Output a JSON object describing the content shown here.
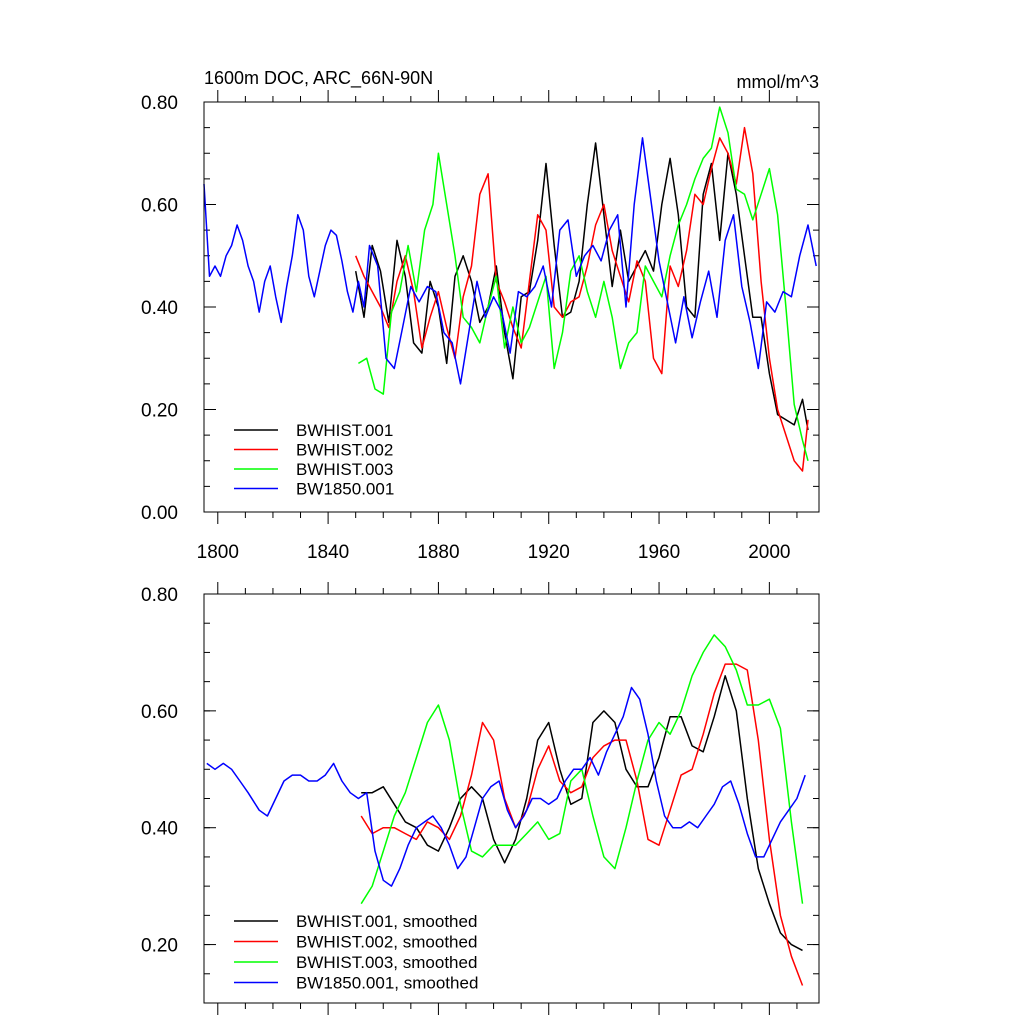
{
  "chart_data": [
    {
      "type": "line",
      "title": "1600m DOC, ARC_66N-90N",
      "units": "mmol/m^3",
      "xlim": [
        1795,
        2018
      ],
      "ylim": [
        0.0,
        0.8
      ],
      "x_ticks": [
        1800,
        1840,
        1880,
        1920,
        1960,
        2000
      ],
      "y_ticks": [
        0.0,
        0.2,
        0.4,
        0.6,
        0.8
      ],
      "y_tick_labels": [
        "0.00",
        "0.20",
        "0.40",
        "0.60",
        "0.80"
      ],
      "legend_position": "bottom-left",
      "series": [
        {
          "name": "BWHIST.001",
          "color": "#000000",
          "x": [
            1850,
            1853,
            1856,
            1859,
            1862,
            1865,
            1868,
            1871,
            1874,
            1877,
            1880,
            1883,
            1886,
            1889,
            1892,
            1895,
            1898,
            1901,
            1904,
            1907,
            1910,
            1913,
            1916,
            1919,
            1922,
            1925,
            1928,
            1931,
            1934,
            1937,
            1940,
            1943,
            1946,
            1949,
            1952,
            1955,
            1958,
            1961,
            1964,
            1967,
            1970,
            1973,
            1976,
            1979,
            1982,
            1985,
            1988,
            1991,
            1994,
            1997,
            2000,
            2003,
            2006,
            2009,
            2012,
            2014
          ],
          "y": [
            0.47,
            0.38,
            0.52,
            0.47,
            0.37,
            0.53,
            0.46,
            0.33,
            0.31,
            0.45,
            0.4,
            0.29,
            0.46,
            0.5,
            0.45,
            0.37,
            0.4,
            0.48,
            0.35,
            0.26,
            0.42,
            0.43,
            0.53,
            0.68,
            0.52,
            0.38,
            0.39,
            0.45,
            0.6,
            0.72,
            0.58,
            0.44,
            0.55,
            0.45,
            0.48,
            0.51,
            0.47,
            0.6,
            0.69,
            0.58,
            0.4,
            0.38,
            0.62,
            0.68,
            0.53,
            0.7,
            0.62,
            0.5,
            0.38,
            0.38,
            0.27,
            0.19,
            0.18,
            0.17,
            0.22,
            0.16
          ]
        },
        {
          "name": "BWHIST.002",
          "color": "#ff0000",
          "x": [
            1850,
            1853,
            1856,
            1859,
            1862,
            1865,
            1868,
            1871,
            1874,
            1877,
            1880,
            1883,
            1886,
            1889,
            1892,
            1895,
            1898,
            1901,
            1904,
            1907,
            1910,
            1913,
            1916,
            1919,
            1922,
            1925,
            1928,
            1931,
            1934,
            1937,
            1940,
            1943,
            1946,
            1949,
            1952,
            1955,
            1958,
            1961,
            1964,
            1967,
            1970,
            1973,
            1976,
            1979,
            1982,
            1985,
            1988,
            1991,
            1994,
            1997,
            2000,
            2003,
            2006,
            2009,
            2012,
            2014
          ],
          "y": [
            0.5,
            0.46,
            0.43,
            0.4,
            0.36,
            0.45,
            0.5,
            0.43,
            0.32,
            0.38,
            0.43,
            0.36,
            0.3,
            0.42,
            0.48,
            0.62,
            0.66,
            0.45,
            0.41,
            0.36,
            0.32,
            0.45,
            0.58,
            0.55,
            0.4,
            0.38,
            0.41,
            0.42,
            0.48,
            0.56,
            0.6,
            0.51,
            0.46,
            0.41,
            0.49,
            0.45,
            0.3,
            0.27,
            0.48,
            0.44,
            0.51,
            0.62,
            0.6,
            0.67,
            0.73,
            0.7,
            0.64,
            0.75,
            0.66,
            0.45,
            0.3,
            0.2,
            0.15,
            0.1,
            0.08,
            0.18
          ]
        },
        {
          "name": "BWHIST.003",
          "color": "#00ff00",
          "x": [
            1851,
            1854,
            1857,
            1860,
            1863,
            1866,
            1869,
            1872,
            1875,
            1878,
            1880,
            1883,
            1886,
            1889,
            1892,
            1895,
            1898,
            1901,
            1904,
            1907,
            1910,
            1913,
            1916,
            1919,
            1922,
            1925,
            1928,
            1931,
            1934,
            1937,
            1940,
            1943,
            1946,
            1949,
            1952,
            1955,
            1958,
            1961,
            1964,
            1967,
            1970,
            1973,
            1976,
            1979,
            1982,
            1985,
            1988,
            1991,
            1994,
            1997,
            2000,
            2003,
            2006,
            2009,
            2012,
            2014
          ],
          "y": [
            0.29,
            0.3,
            0.24,
            0.23,
            0.39,
            0.43,
            0.52,
            0.43,
            0.55,
            0.6,
            0.7,
            0.6,
            0.5,
            0.38,
            0.36,
            0.33,
            0.4,
            0.46,
            0.32,
            0.4,
            0.33,
            0.36,
            0.41,
            0.46,
            0.28,
            0.35,
            0.47,
            0.5,
            0.43,
            0.38,
            0.45,
            0.38,
            0.28,
            0.33,
            0.35,
            0.48,
            0.45,
            0.42,
            0.5,
            0.56,
            0.6,
            0.65,
            0.69,
            0.71,
            0.79,
            0.74,
            0.63,
            0.62,
            0.57,
            0.62,
            0.67,
            0.58,
            0.4,
            0.21,
            0.14,
            0.1
          ]
        },
        {
          "name": "BW1850.001",
          "color": "#0000ff",
          "x": [
            1795,
            1797,
            1799,
            1801,
            1803,
            1805,
            1807,
            1809,
            1811,
            1813,
            1815,
            1817,
            1819,
            1821,
            1823,
            1825,
            1827,
            1829,
            1831,
            1833,
            1835,
            1837,
            1839,
            1841,
            1843,
            1845,
            1847,
            1849,
            1851,
            1853,
            1855,
            1858,
            1861,
            1864,
            1867,
            1870,
            1873,
            1876,
            1879,
            1882,
            1885,
            1888,
            1891,
            1894,
            1897,
            1900,
            1903,
            1906,
            1909,
            1912,
            1915,
            1918,
            1921,
            1924,
            1927,
            1930,
            1933,
            1936,
            1939,
            1942,
            1945,
            1948,
            1951,
            1954,
            1957,
            1960,
            1963,
            1966,
            1969,
            1972,
            1975,
            1978,
            1981,
            1984,
            1987,
            1990,
            1993,
            1996,
            1999,
            2002,
            2005,
            2008,
            2011,
            2014,
            2017
          ],
          "y": [
            0.64,
            0.46,
            0.48,
            0.46,
            0.5,
            0.52,
            0.56,
            0.53,
            0.48,
            0.45,
            0.39,
            0.45,
            0.48,
            0.42,
            0.37,
            0.44,
            0.5,
            0.58,
            0.55,
            0.46,
            0.42,
            0.47,
            0.52,
            0.55,
            0.54,
            0.49,
            0.43,
            0.39,
            0.45,
            0.4,
            0.52,
            0.48,
            0.3,
            0.28,
            0.36,
            0.44,
            0.41,
            0.44,
            0.43,
            0.35,
            0.33,
            0.25,
            0.35,
            0.45,
            0.38,
            0.42,
            0.39,
            0.31,
            0.43,
            0.42,
            0.44,
            0.48,
            0.4,
            0.55,
            0.57,
            0.46,
            0.5,
            0.52,
            0.49,
            0.55,
            0.58,
            0.4,
            0.6,
            0.73,
            0.61,
            0.49,
            0.41,
            0.33,
            0.42,
            0.34,
            0.41,
            0.47,
            0.38,
            0.53,
            0.58,
            0.44,
            0.37,
            0.28,
            0.41,
            0.39,
            0.43,
            0.42,
            0.5,
            0.56,
            0.48
          ]
        }
      ]
    },
    {
      "type": "line",
      "title": "",
      "xlim": [
        1795,
        2018
      ],
      "ylim": [
        0.1,
        0.8
      ],
      "x_ticks": [
        1800,
        1840,
        1880,
        1920,
        1960,
        2000
      ],
      "y_ticks": [
        0.2,
        0.4,
        0.6,
        0.8
      ],
      "y_tick_labels": [
        "0.20",
        "0.40",
        "0.60",
        "0.80"
      ],
      "legend_position": "bottom-left",
      "series": [
        {
          "name": "BWHIST.001, smoothed",
          "color": "#000000",
          "x": [
            1852,
            1856,
            1860,
            1864,
            1868,
            1872,
            1876,
            1880,
            1884,
            1888,
            1892,
            1896,
            1900,
            1904,
            1908,
            1912,
            1916,
            1920,
            1924,
            1928,
            1932,
            1936,
            1940,
            1944,
            1948,
            1952,
            1956,
            1960,
            1964,
            1968,
            1972,
            1976,
            1980,
            1984,
            1988,
            1992,
            1996,
            2000,
            2004,
            2008,
            2012
          ],
          "y": [
            0.46,
            0.46,
            0.47,
            0.44,
            0.41,
            0.4,
            0.37,
            0.36,
            0.4,
            0.45,
            0.47,
            0.45,
            0.38,
            0.34,
            0.38,
            0.45,
            0.55,
            0.58,
            0.5,
            0.44,
            0.45,
            0.58,
            0.6,
            0.58,
            0.5,
            0.47,
            0.47,
            0.52,
            0.59,
            0.59,
            0.54,
            0.53,
            0.59,
            0.66,
            0.6,
            0.45,
            0.33,
            0.27,
            0.22,
            0.2,
            0.19
          ]
        },
        {
          "name": "BWHIST.002, smoothed",
          "color": "#ff0000",
          "x": [
            1852,
            1856,
            1860,
            1864,
            1868,
            1872,
            1876,
            1880,
            1884,
            1888,
            1892,
            1896,
            1900,
            1904,
            1908,
            1912,
            1916,
            1920,
            1924,
            1928,
            1932,
            1936,
            1940,
            1944,
            1948,
            1952,
            1956,
            1960,
            1964,
            1968,
            1972,
            1976,
            1980,
            1984,
            1988,
            1992,
            1996,
            2000,
            2004,
            2008,
            2012
          ],
          "y": [
            0.42,
            0.39,
            0.4,
            0.4,
            0.39,
            0.38,
            0.41,
            0.4,
            0.38,
            0.42,
            0.49,
            0.58,
            0.55,
            0.45,
            0.4,
            0.43,
            0.5,
            0.54,
            0.48,
            0.46,
            0.47,
            0.52,
            0.54,
            0.55,
            0.55,
            0.48,
            0.38,
            0.37,
            0.43,
            0.49,
            0.5,
            0.56,
            0.63,
            0.68,
            0.68,
            0.67,
            0.55,
            0.38,
            0.25,
            0.18,
            0.13
          ]
        },
        {
          "name": "BWHIST.003, smoothed",
          "color": "#00ff00",
          "x": [
            1852,
            1856,
            1860,
            1864,
            1868,
            1872,
            1876,
            1880,
            1884,
            1888,
            1892,
            1896,
            1900,
            1904,
            1908,
            1912,
            1916,
            1920,
            1924,
            1928,
            1932,
            1936,
            1940,
            1944,
            1948,
            1952,
            1956,
            1960,
            1964,
            1968,
            1972,
            1976,
            1980,
            1984,
            1988,
            1992,
            1996,
            2000,
            2004,
            2008,
            2012
          ],
          "y": [
            0.27,
            0.3,
            0.36,
            0.42,
            0.46,
            0.52,
            0.58,
            0.61,
            0.55,
            0.44,
            0.36,
            0.35,
            0.37,
            0.37,
            0.37,
            0.39,
            0.41,
            0.38,
            0.39,
            0.48,
            0.5,
            0.42,
            0.35,
            0.33,
            0.4,
            0.48,
            0.55,
            0.58,
            0.56,
            0.6,
            0.66,
            0.7,
            0.73,
            0.71,
            0.67,
            0.61,
            0.61,
            0.62,
            0.57,
            0.41,
            0.27
          ]
        },
        {
          "name": "BW1850.001, smoothed",
          "color": "#0000ff",
          "x": [
            1796,
            1799,
            1802,
            1805,
            1808,
            1811,
            1815,
            1818,
            1821,
            1824,
            1827,
            1830,
            1833,
            1836,
            1839,
            1842,
            1845,
            1848,
            1851,
            1854,
            1857,
            1860,
            1863,
            1866,
            1869,
            1872,
            1875,
            1878,
            1881,
            1884,
            1887,
            1890,
            1893,
            1896,
            1899,
            1902,
            1905,
            1908,
            1911,
            1914,
            1917,
            1920,
            1923,
            1926,
            1929,
            1932,
            1935,
            1938,
            1941,
            1944,
            1947,
            1950,
            1953,
            1956,
            1959,
            1962,
            1965,
            1968,
            1971,
            1974,
            1977,
            1980,
            1983,
            1986,
            1989,
            1992,
            1995,
            1998,
            2001,
            2004,
            2007,
            2010,
            2013
          ],
          "y": [
            0.51,
            0.5,
            0.51,
            0.5,
            0.48,
            0.46,
            0.43,
            0.42,
            0.45,
            0.48,
            0.49,
            0.49,
            0.48,
            0.48,
            0.49,
            0.51,
            0.48,
            0.46,
            0.45,
            0.46,
            0.36,
            0.31,
            0.3,
            0.33,
            0.37,
            0.4,
            0.41,
            0.42,
            0.4,
            0.37,
            0.33,
            0.35,
            0.4,
            0.45,
            0.47,
            0.48,
            0.43,
            0.4,
            0.42,
            0.45,
            0.45,
            0.44,
            0.45,
            0.48,
            0.5,
            0.5,
            0.52,
            0.49,
            0.53,
            0.56,
            0.59,
            0.64,
            0.62,
            0.56,
            0.48,
            0.42,
            0.4,
            0.4,
            0.41,
            0.4,
            0.42,
            0.44,
            0.47,
            0.48,
            0.44,
            0.39,
            0.35,
            0.35,
            0.38,
            0.41,
            0.43,
            0.45,
            0.49
          ]
        }
      ]
    }
  ]
}
